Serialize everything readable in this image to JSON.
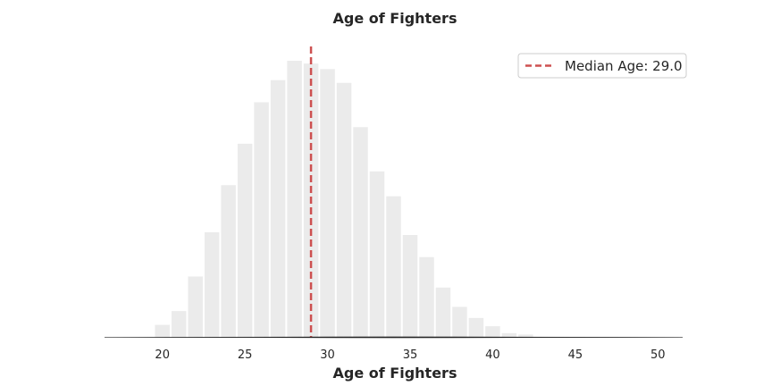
{
  "chart_data": {
    "type": "bar",
    "title": "Age of Fighters",
    "xlabel": "Age of Fighters",
    "ylabel": "",
    "xlim": [
      16.5,
      51.5
    ],
    "ylim": [
      0,
      1
    ],
    "xticks": [
      20,
      25,
      30,
      35,
      40,
      45,
      50
    ],
    "bin_width": 1,
    "bins": [
      {
        "x": 20,
        "value": 0.045
      },
      {
        "x": 21,
        "value": 0.095
      },
      {
        "x": 22,
        "value": 0.22
      },
      {
        "x": 23,
        "value": 0.38
      },
      {
        "x": 24,
        "value": 0.55
      },
      {
        "x": 25,
        "value": 0.7
      },
      {
        "x": 26,
        "value": 0.85
      },
      {
        "x": 27,
        "value": 0.93
      },
      {
        "x": 28,
        "value": 1.0
      },
      {
        "x": 29,
        "value": 0.99
      },
      {
        "x": 30,
        "value": 0.97
      },
      {
        "x": 31,
        "value": 0.92
      },
      {
        "x": 32,
        "value": 0.76
      },
      {
        "x": 33,
        "value": 0.6
      },
      {
        "x": 34,
        "value": 0.51
      },
      {
        "x": 35,
        "value": 0.37
      },
      {
        "x": 36,
        "value": 0.29
      },
      {
        "x": 37,
        "value": 0.18
      },
      {
        "x": 38,
        "value": 0.11
      },
      {
        "x": 39,
        "value": 0.07
      },
      {
        "x": 40,
        "value": 0.04
      },
      {
        "x": 41,
        "value": 0.015
      },
      {
        "x": 42,
        "value": 0.01
      }
    ],
    "median": 29.0,
    "legend": {
      "label": "Median Age: 29.0",
      "placement": "top-right"
    },
    "grid": false,
    "colors": {
      "bar": "#ebebeb",
      "median_line": "#cd5050",
      "axis": "#262626"
    }
  }
}
